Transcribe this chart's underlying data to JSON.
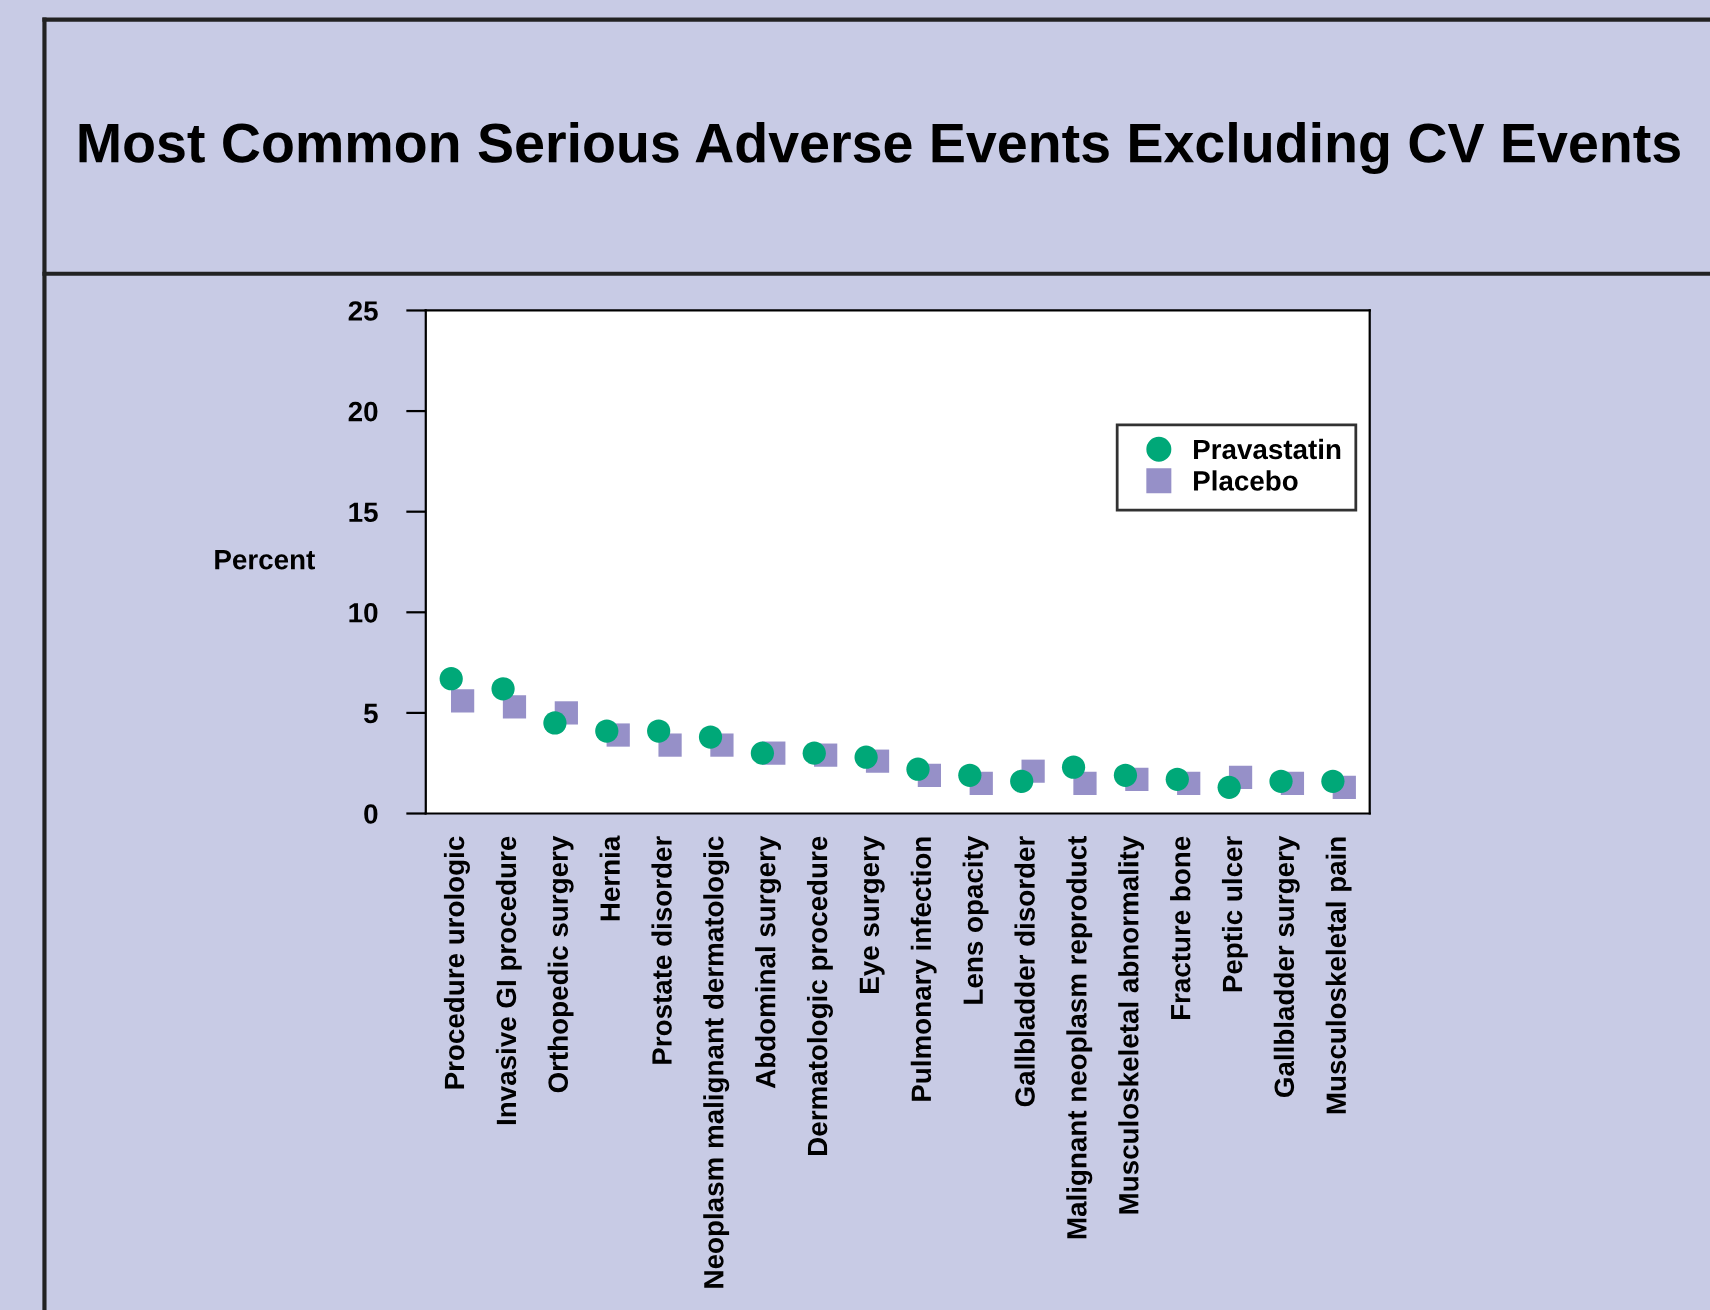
{
  "chart_data": {
    "type": "scatter",
    "title": "Most Common Serious Adverse Events Excluding CV Events",
    "ylabel": "Percent",
    "categories": [
      "Procedure urologic",
      "Invasive GI procedure",
      "Orthopedic surgery",
      "Hernia",
      "Prostate disorder",
      "Neoplasm malignant dermatologic",
      "Abdominal surgery",
      "Dermatologic procedure",
      "Eye surgery",
      "Pulmonary infection",
      "Lens opacity",
      "Gallbladder disorder",
      "Malignant neoplasm reproduct",
      "Musculoskeletal abnormality",
      "Fracture bone",
      "Peptic ulcer",
      "Gallbladder surgery",
      "Musculoskeletal pain"
    ],
    "series": [
      {
        "name": "Pravastatin",
        "color": "#00a878",
        "marker": "circle",
        "values": [
          6.7,
          6.2,
          4.5,
          4.1,
          4.1,
          3.8,
          3.0,
          3.0,
          2.8,
          2.2,
          1.9,
          1.6,
          2.3,
          1.9,
          1.7,
          1.3,
          1.6,
          1.6
        ]
      },
      {
        "name": "Placebo",
        "color": "#9690c8",
        "marker": "square",
        "values": [
          5.6,
          5.3,
          5.0,
          3.9,
          3.4,
          3.4,
          3.0,
          2.9,
          2.6,
          1.9,
          1.5,
          2.1,
          1.5,
          1.7,
          1.5,
          1.8,
          1.5,
          1.3
        ]
      }
    ],
    "ylim": [
      0,
      25
    ],
    "yticks": [
      0,
      5,
      10,
      15,
      20,
      25
    ],
    "grid": false,
    "legend": "top right"
  }
}
